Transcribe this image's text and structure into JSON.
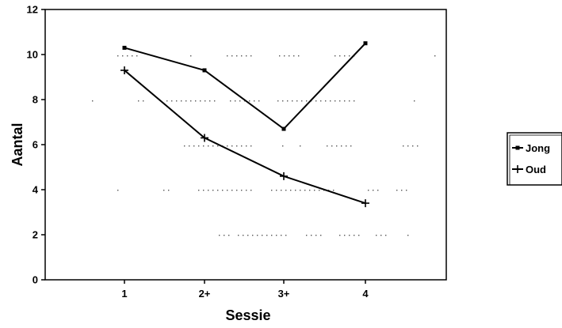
{
  "chart_data": {
    "type": "line",
    "categories": [
      "1",
      "2+",
      "3+",
      "4"
    ],
    "series": [
      {
        "name": "Jong",
        "marker": "square",
        "values": [
          10.3,
          9.3,
          6.7,
          10.5
        ]
      },
      {
        "name": "Oud",
        "marker": "plus",
        "values": [
          9.3,
          6.3,
          4.6,
          3.4
        ]
      }
    ],
    "xlabel": "Sessie",
    "ylabel": "Aantal",
    "ylim": [
      0,
      12
    ],
    "yticks": [
      0,
      2,
      4,
      6,
      8,
      10,
      12
    ],
    "grid": false,
    "legend": "right",
    "colors": {
      "line": "#000000",
      "background": "#ffffff"
    }
  }
}
